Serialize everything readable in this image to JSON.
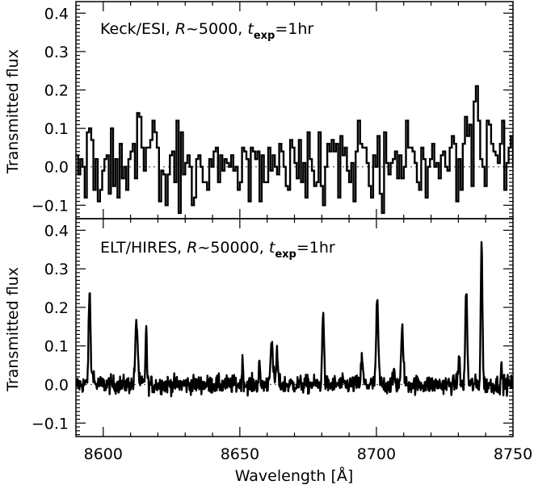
{
  "chart_data": [
    {
      "type": "line",
      "style": "step",
      "panel": "top",
      "annotation": {
        "instrument": "Keck/ESI, ",
        "resolution_symbol": "R",
        "resolution_value": "~5000, ",
        "time_symbol": "t",
        "time_subscript": "exp",
        "time_value": "=1hr"
      },
      "xlabel": "",
      "ylabel": "Transmitted flux",
      "xlim": [
        8590,
        8750
      ],
      "ylim": [
        -0.135,
        0.43
      ],
      "yticks": [
        -0.1,
        0.0,
        0.1,
        0.2,
        0.3,
        0.4
      ],
      "ytick_labels": [
        "−0.1",
        "0.0",
        "0.1",
        "0.2",
        "0.3",
        "0.4"
      ],
      "xticks": [
        8600,
        8650,
        8700,
        8750
      ],
      "reference_line": {
        "y": 0.0,
        "style": "dotted"
      },
      "series": [
        {
          "name": "Keck/ESI spectrum",
          "bin_start": 8590,
          "bin_width": 0.8,
          "values": [
            0.03,
            -0.02,
            0.02,
            0.0,
            -0.08,
            0.09,
            0.1,
            0.07,
            -0.06,
            0.02,
            -0.09,
            -0.06,
            -0.01,
            0.02,
            0.03,
            -0.07,
            0.1,
            -0.05,
            0.02,
            -0.08,
            0.06,
            -0.03,
            0.0,
            -0.06,
            0.02,
            0.04,
            0.06,
            -0.03,
            0.14,
            0.13,
            0.05,
            -0.01,
            0.05,
            0.05,
            0.07,
            0.12,
            0.09,
            0.05,
            -0.09,
            -0.01,
            -0.02,
            -0.1,
            -0.02,
            0.03,
            0.04,
            -0.04,
            0.12,
            -0.12,
            0.09,
            -0.02,
            0.01,
            0.03,
            0.0,
            -0.1,
            -0.08,
            0.02,
            0.03,
            0.0,
            -0.04,
            -0.04,
            -0.06,
            0.02,
            0.0,
            0.04,
            0.05,
            -0.04,
            0.03,
            -0.01,
            0.02,
            0.01,
            0.0,
            0.03,
            -0.01,
            0.0,
            -0.06,
            -0.04,
            0.05,
            0.04,
            0.02,
            -0.09,
            0.05,
            0.04,
            0.02,
            0.04,
            -0.09,
            0.03,
            -0.04,
            -0.04,
            0.05,
            -0.01,
            0.03,
            0.0,
            -0.02,
            0.06,
            0.04,
            0.0,
            -0.05,
            -0.06,
            0.07,
            0.05,
            0.01,
            -0.03,
            0.07,
            -0.04,
            0.01,
            -0.08,
            0.09,
            0.02,
            -0.01,
            -0.05,
            -0.04,
            0.09,
            -0.05,
            -0.1,
            0.0,
            0.06,
            0.04,
            0.07,
            0.04,
            0.06,
            -0.08,
            0.08,
            0.03,
            0.05,
            -0.01,
            -0.04,
            0.01,
            -0.09,
            0.04,
            0.12,
            0.06,
            0.05,
            0.05,
            0.01,
            -0.05,
            -0.08,
            0.03,
            0.0,
            0.08,
            -0.07,
            -0.12,
            0.09,
            0.01,
            -0.02,
            0.01,
            0.02,
            0.04,
            -0.03,
            0.03,
            -0.03,
            0.0,
            0.12,
            0.05,
            0.05,
            0.04,
            0.01,
            -0.04,
            -0.06,
            0.05,
            0.02,
            -0.08,
            0.0,
            0.02,
            0.06,
            0.0,
            0.01,
            -0.03,
            0.03,
            0.04,
            0.0,
            -0.01,
            0.05,
            0.08,
            0.06,
            -0.09,
            0.02,
            -0.06,
            0.06,
            0.13,
            0.08,
            0.11,
            -0.05,
            0.17,
            0.21,
            0.12,
            0.02,
            0.0,
            -0.05,
            0.12,
            0.11,
            0.06,
            0.04,
            0.03,
            0.01,
            0.06,
            0.12,
            -0.06,
            0.01,
            0.05,
            0.08,
            0.0,
            0.02
          ]
        }
      ]
    },
    {
      "type": "line",
      "panel": "bottom",
      "annotation": {
        "instrument": "ELT/HIRES, ",
        "resolution_symbol": "R",
        "resolution_value": "~50000, ",
        "time_symbol": "t",
        "time_subscript": "exp",
        "time_value": "=1hr"
      },
      "xlabel": "Wavelength [Å]",
      "ylabel": "Transmitted flux",
      "xlim": [
        8590,
        8750
      ],
      "ylim": [
        -0.135,
        0.43
      ],
      "yticks": [
        -0.1,
        0.0,
        0.1,
        0.2,
        0.3,
        0.4
      ],
      "ytick_labels": [
        "−0.1",
        "0.0",
        "0.1",
        "0.2",
        "0.3",
        "0.4"
      ],
      "xticks": [
        8600,
        8650,
        8700,
        8750
      ],
      "xtick_labels": [
        "8600",
        "8650",
        "8700",
        "8750"
      ],
      "reference_line": {
        "y": 0.0,
        "style": "dotted"
      },
      "noise_sigma": 0.012,
      "sample_step": 0.16,
      "peaks": [
        {
          "x": 8595.0,
          "y": 0.235,
          "width": 0.35
        },
        {
          "x": 8596.3,
          "y": 0.04,
          "width": 0.25
        },
        {
          "x": 8612.2,
          "y": 0.16,
          "width": 0.45
        },
        {
          "x": 8615.7,
          "y": 0.15,
          "width": 0.25
        },
        {
          "x": 8651.0,
          "y": 0.055,
          "width": 0.25
        },
        {
          "x": 8657.1,
          "y": 0.06,
          "width": 0.2
        },
        {
          "x": 8661.6,
          "y": 0.1,
          "width": 0.5
        },
        {
          "x": 8663.6,
          "y": 0.085,
          "width": 0.3
        },
        {
          "x": 8680.5,
          "y": 0.205,
          "width": 0.3
        },
        {
          "x": 8694.7,
          "y": 0.065,
          "width": 0.35
        },
        {
          "x": 8700.3,
          "y": 0.21,
          "width": 0.4
        },
        {
          "x": 8706.5,
          "y": 0.04,
          "width": 0.25
        },
        {
          "x": 8709.5,
          "y": 0.14,
          "width": 0.4
        },
        {
          "x": 8730.2,
          "y": 0.075,
          "width": 0.3
        },
        {
          "x": 8732.9,
          "y": 0.245,
          "width": 0.35
        },
        {
          "x": 8738.5,
          "y": 0.375,
          "width": 0.3
        },
        {
          "x": 8745.8,
          "y": 0.04,
          "width": 0.25
        }
      ]
    }
  ],
  "colors": {
    "line": "#000000",
    "background": "#ffffff",
    "reference_line": "#555555"
  }
}
